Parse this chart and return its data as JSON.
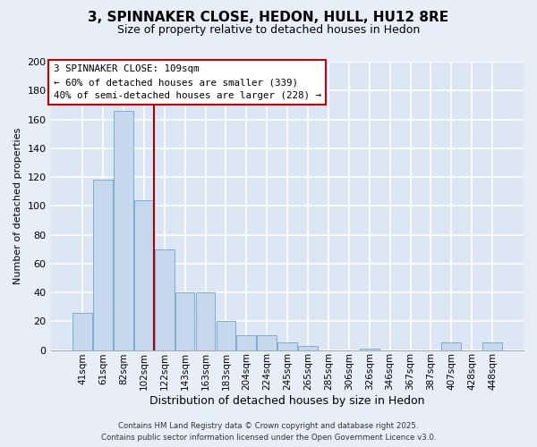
{
  "title": "3, SPINNAKER CLOSE, HEDON, HULL, HU12 8RE",
  "subtitle": "Size of property relative to detached houses in Hedon",
  "xlabel": "Distribution of detached houses by size in Hedon",
  "ylabel": "Number of detached properties",
  "bar_color": "#c5d8ed",
  "bar_edge_color": "#7aaed0",
  "categories": [
    "41sqm",
    "61sqm",
    "82sqm",
    "102sqm",
    "122sqm",
    "143sqm",
    "163sqm",
    "183sqm",
    "204sqm",
    "224sqm",
    "245sqm",
    "265sqm",
    "285sqm",
    "306sqm",
    "326sqm",
    "346sqm",
    "367sqm",
    "387sqm",
    "407sqm",
    "428sqm",
    "448sqm"
  ],
  "values": [
    26,
    118,
    166,
    104,
    70,
    40,
    40,
    20,
    10,
    10,
    5,
    3,
    0,
    0,
    1,
    0,
    0,
    0,
    5,
    0,
    5
  ],
  "ylim": [
    0,
    200
  ],
  "yticks": [
    0,
    20,
    40,
    60,
    80,
    100,
    120,
    140,
    160,
    180,
    200
  ],
  "vline_color": "#aa0000",
  "annotation_text": "3 SPINNAKER CLOSE: 109sqm\n← 60% of detached houses are smaller (339)\n40% of semi-detached houses are larger (228) →",
  "annotation_box_color": "#ffffff",
  "annotation_box_edge": "#cc0000",
  "footer_line1": "Contains HM Land Registry data © Crown copyright and database right 2025.",
  "footer_line2": "Contains public sector information licensed under the Open Government Licence v3.0.",
  "background_color": "#e8eef8",
  "grid_color": "#ffffff",
  "plot_bg_color": "#dce6f5"
}
